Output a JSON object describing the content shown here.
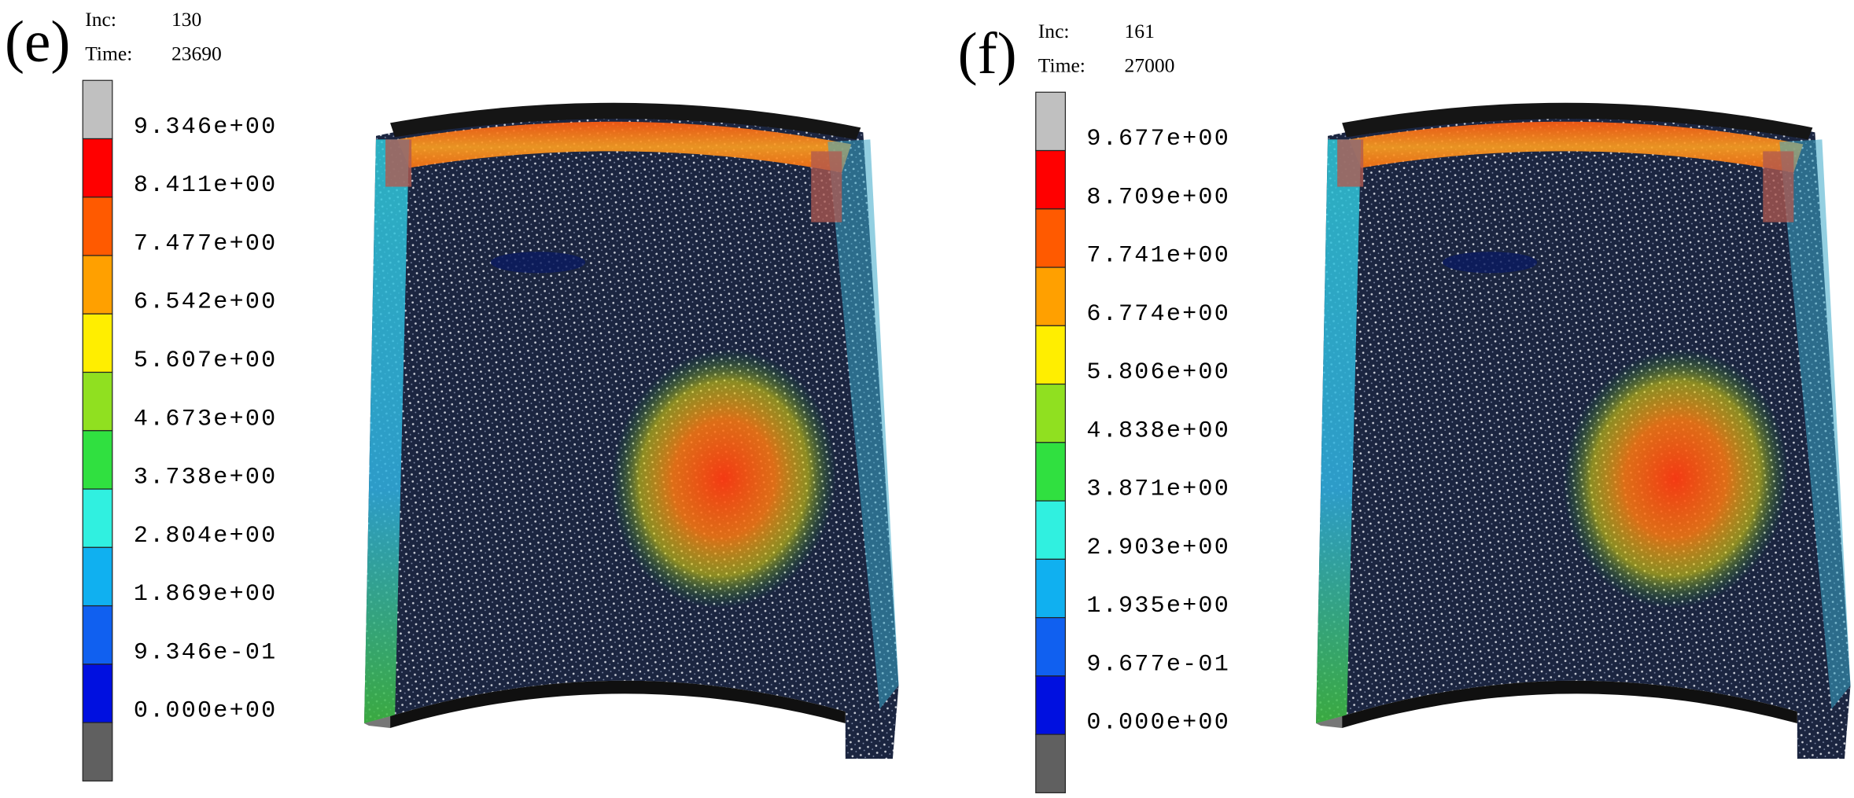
{
  "panels": [
    {
      "label": "(e)",
      "inc_label": "Inc:",
      "inc": 130,
      "time_label": "Time:",
      "time": 23690,
      "legend": [
        "9.346e+00",
        "8.411e+00",
        "7.477e+00",
        "6.542e+00",
        "5.607e+00",
        "4.673e+00",
        "3.738e+00",
        "2.804e+00",
        "1.869e+00",
        "9.346e-01",
        "0.000e+00"
      ]
    },
    {
      "label": "(f)",
      "inc_label": "Inc:",
      "inc": 161,
      "time_label": "Time:",
      "time": 27000,
      "legend": [
        "9.677e+00",
        "8.709e+00",
        "7.741e+00",
        "6.774e+00",
        "5.806e+00",
        "4.838e+00",
        "3.871e+00",
        "2.903e+00",
        "1.935e+00",
        "9.677e-01",
        "0.000e+00"
      ]
    }
  ]
}
